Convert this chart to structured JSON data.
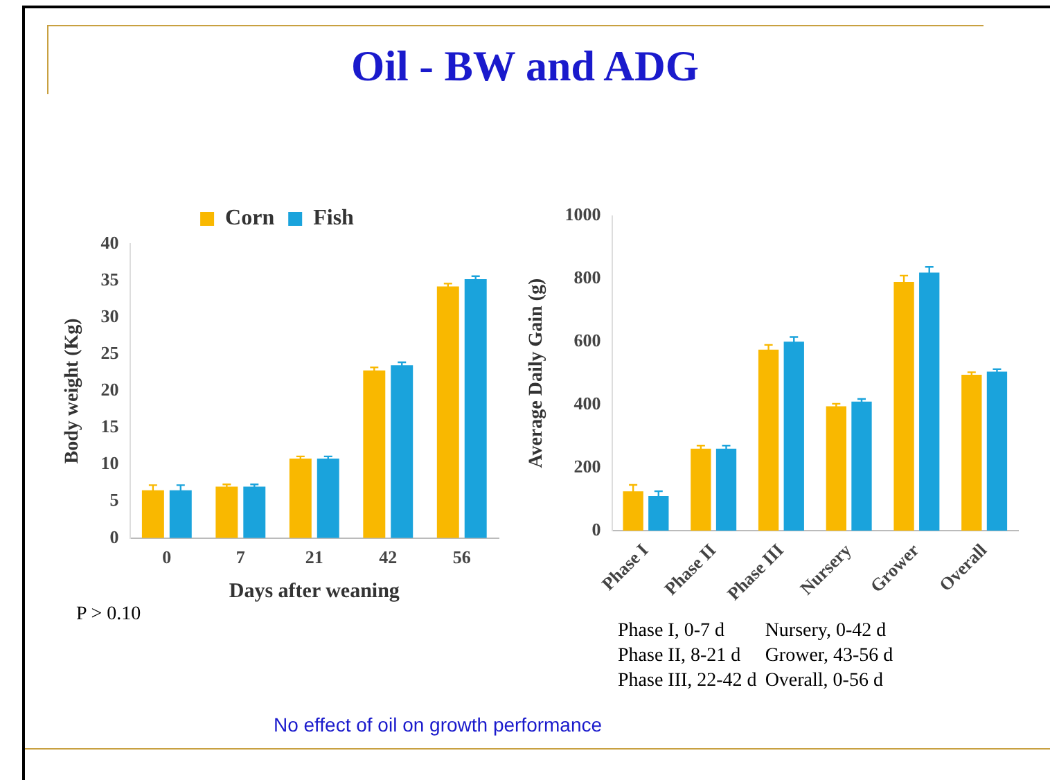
{
  "chart_data": [
    {
      "type": "bar",
      "title": "Oil - BW and ADG",
      "xlabel": "Days after weaning",
      "ylabel": "Body weight (Kg)",
      "categories": [
        "0",
        "7",
        "21",
        "42",
        "56"
      ],
      "series": [
        {
          "name": "Corn",
          "color": "#f9b800",
          "values": [
            6.5,
            7.0,
            10.8,
            22.8,
            34.2
          ],
          "errors": [
            0.7,
            0.3,
            0.3,
            0.4,
            0.4
          ]
        },
        {
          "name": "Fish",
          "color": "#1aa3dc",
          "values": [
            6.5,
            7.0,
            10.8,
            23.5,
            35.2
          ],
          "errors": [
            0.7,
            0.3,
            0.3,
            0.4,
            0.4
          ]
        }
      ],
      "ylim": [
        0,
        40
      ],
      "yticks": [
        0,
        5,
        10,
        15,
        20,
        25,
        30,
        35,
        40
      ],
      "grid": false,
      "legend": "top",
      "annotations": [
        "P > 0.10"
      ]
    },
    {
      "type": "bar",
      "ylabel": "Average Daily Gain (g)",
      "categories": [
        "Phase I",
        "Phase II",
        "Phase III",
        "Nursery",
        "Grower",
        "Overall"
      ],
      "series": [
        {
          "color": "#f9b800",
          "values": [
            125,
            260,
            575,
            395,
            790,
            495
          ],
          "errors": [
            20,
            10,
            15,
            8,
            20,
            8
          ]
        },
        {
          "color": "#1aa3dc",
          "values": [
            110,
            260,
            600,
            410,
            820,
            505
          ],
          "errors": [
            15,
            10,
            15,
            8,
            18,
            8
          ]
        }
      ],
      "ylim": [
        0,
        1000
      ],
      "yticks": [
        0,
        200,
        400,
        600,
        800,
        1000
      ],
      "grid": false,
      "annotations": [
        "Phase I, 0-7 d",
        "Phase II, 8-21 d",
        "Phase III, 22-42 d",
        "Nursery, 0-42 d",
        "Grower, 43-56 d",
        "Overall, 0-56 d",
        "No effect of oil on growth performance"
      ]
    }
  ]
}
